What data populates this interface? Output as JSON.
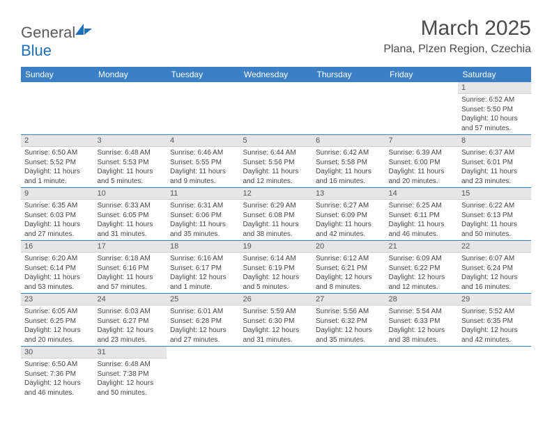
{
  "brand": {
    "name1": "General",
    "name2": "Blue",
    "icon_color": "#1e6fb8"
  },
  "title": "March 2025",
  "location": "Plana, Plzen Region, Czechia",
  "header_bg": "#3b7fc4",
  "header_fg": "#ffffff",
  "daynum_bg": "#e6e6e6",
  "border_color": "#3b7fc4",
  "weekdays": [
    "Sunday",
    "Monday",
    "Tuesday",
    "Wednesday",
    "Thursday",
    "Friday",
    "Saturday"
  ],
  "weeks": [
    [
      null,
      null,
      null,
      null,
      null,
      null,
      {
        "n": "1",
        "sr": "Sunrise: 6:52 AM",
        "ss": "Sunset: 5:50 PM",
        "d1": "Daylight: 10 hours",
        "d2": "and 57 minutes."
      }
    ],
    [
      {
        "n": "2",
        "sr": "Sunrise: 6:50 AM",
        "ss": "Sunset: 5:52 PM",
        "d1": "Daylight: 11 hours",
        "d2": "and 1 minute."
      },
      {
        "n": "3",
        "sr": "Sunrise: 6:48 AM",
        "ss": "Sunset: 5:53 PM",
        "d1": "Daylight: 11 hours",
        "d2": "and 5 minutes."
      },
      {
        "n": "4",
        "sr": "Sunrise: 6:46 AM",
        "ss": "Sunset: 5:55 PM",
        "d1": "Daylight: 11 hours",
        "d2": "and 9 minutes."
      },
      {
        "n": "5",
        "sr": "Sunrise: 6:44 AM",
        "ss": "Sunset: 5:56 PM",
        "d1": "Daylight: 11 hours",
        "d2": "and 12 minutes."
      },
      {
        "n": "6",
        "sr": "Sunrise: 6:42 AM",
        "ss": "Sunset: 5:58 PM",
        "d1": "Daylight: 11 hours",
        "d2": "and 16 minutes."
      },
      {
        "n": "7",
        "sr": "Sunrise: 6:39 AM",
        "ss": "Sunset: 6:00 PM",
        "d1": "Daylight: 11 hours",
        "d2": "and 20 minutes."
      },
      {
        "n": "8",
        "sr": "Sunrise: 6:37 AM",
        "ss": "Sunset: 6:01 PM",
        "d1": "Daylight: 11 hours",
        "d2": "and 23 minutes."
      }
    ],
    [
      {
        "n": "9",
        "sr": "Sunrise: 6:35 AM",
        "ss": "Sunset: 6:03 PM",
        "d1": "Daylight: 11 hours",
        "d2": "and 27 minutes."
      },
      {
        "n": "10",
        "sr": "Sunrise: 6:33 AM",
        "ss": "Sunset: 6:05 PM",
        "d1": "Daylight: 11 hours",
        "d2": "and 31 minutes."
      },
      {
        "n": "11",
        "sr": "Sunrise: 6:31 AM",
        "ss": "Sunset: 6:06 PM",
        "d1": "Daylight: 11 hours",
        "d2": "and 35 minutes."
      },
      {
        "n": "12",
        "sr": "Sunrise: 6:29 AM",
        "ss": "Sunset: 6:08 PM",
        "d1": "Daylight: 11 hours",
        "d2": "and 38 minutes."
      },
      {
        "n": "13",
        "sr": "Sunrise: 6:27 AM",
        "ss": "Sunset: 6:09 PM",
        "d1": "Daylight: 11 hours",
        "d2": "and 42 minutes."
      },
      {
        "n": "14",
        "sr": "Sunrise: 6:25 AM",
        "ss": "Sunset: 6:11 PM",
        "d1": "Daylight: 11 hours",
        "d2": "and 46 minutes."
      },
      {
        "n": "15",
        "sr": "Sunrise: 6:22 AM",
        "ss": "Sunset: 6:13 PM",
        "d1": "Daylight: 11 hours",
        "d2": "and 50 minutes."
      }
    ],
    [
      {
        "n": "16",
        "sr": "Sunrise: 6:20 AM",
        "ss": "Sunset: 6:14 PM",
        "d1": "Daylight: 11 hours",
        "d2": "and 53 minutes."
      },
      {
        "n": "17",
        "sr": "Sunrise: 6:18 AM",
        "ss": "Sunset: 6:16 PM",
        "d1": "Daylight: 11 hours",
        "d2": "and 57 minutes."
      },
      {
        "n": "18",
        "sr": "Sunrise: 6:16 AM",
        "ss": "Sunset: 6:17 PM",
        "d1": "Daylight: 12 hours",
        "d2": "and 1 minute."
      },
      {
        "n": "19",
        "sr": "Sunrise: 6:14 AM",
        "ss": "Sunset: 6:19 PM",
        "d1": "Daylight: 12 hours",
        "d2": "and 5 minutes."
      },
      {
        "n": "20",
        "sr": "Sunrise: 6:12 AM",
        "ss": "Sunset: 6:21 PM",
        "d1": "Daylight: 12 hours",
        "d2": "and 8 minutes."
      },
      {
        "n": "21",
        "sr": "Sunrise: 6:09 AM",
        "ss": "Sunset: 6:22 PM",
        "d1": "Daylight: 12 hours",
        "d2": "and 12 minutes."
      },
      {
        "n": "22",
        "sr": "Sunrise: 6:07 AM",
        "ss": "Sunset: 6:24 PM",
        "d1": "Daylight: 12 hours",
        "d2": "and 16 minutes."
      }
    ],
    [
      {
        "n": "23",
        "sr": "Sunrise: 6:05 AM",
        "ss": "Sunset: 6:25 PM",
        "d1": "Daylight: 12 hours",
        "d2": "and 20 minutes."
      },
      {
        "n": "24",
        "sr": "Sunrise: 6:03 AM",
        "ss": "Sunset: 6:27 PM",
        "d1": "Daylight: 12 hours",
        "d2": "and 23 minutes."
      },
      {
        "n": "25",
        "sr": "Sunrise: 6:01 AM",
        "ss": "Sunset: 6:28 PM",
        "d1": "Daylight: 12 hours",
        "d2": "and 27 minutes."
      },
      {
        "n": "26",
        "sr": "Sunrise: 5:59 AM",
        "ss": "Sunset: 6:30 PM",
        "d1": "Daylight: 12 hours",
        "d2": "and 31 minutes."
      },
      {
        "n": "27",
        "sr": "Sunrise: 5:56 AM",
        "ss": "Sunset: 6:32 PM",
        "d1": "Daylight: 12 hours",
        "d2": "and 35 minutes."
      },
      {
        "n": "28",
        "sr": "Sunrise: 5:54 AM",
        "ss": "Sunset: 6:33 PM",
        "d1": "Daylight: 12 hours",
        "d2": "and 38 minutes."
      },
      {
        "n": "29",
        "sr": "Sunrise: 5:52 AM",
        "ss": "Sunset: 6:35 PM",
        "d1": "Daylight: 12 hours",
        "d2": "and 42 minutes."
      }
    ],
    [
      {
        "n": "30",
        "sr": "Sunrise: 6:50 AM",
        "ss": "Sunset: 7:36 PM",
        "d1": "Daylight: 12 hours",
        "d2": "and 46 minutes."
      },
      {
        "n": "31",
        "sr": "Sunrise: 6:48 AM",
        "ss": "Sunset: 7:38 PM",
        "d1": "Daylight: 12 hours",
        "d2": "and 50 minutes."
      },
      null,
      null,
      null,
      null,
      null
    ]
  ]
}
